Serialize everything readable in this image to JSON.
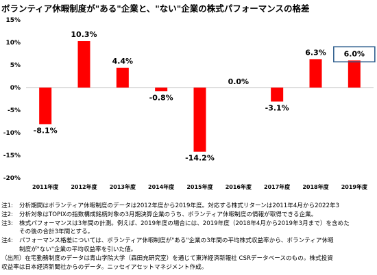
{
  "title": "ボランティア休暇制度が\"ある\"企業と、\"ない\"企業の株式パフォーマンスの格差",
  "chart_data": {
    "type": "bar",
    "categories": [
      "2011年度",
      "2012年度",
      "2013年度",
      "2014年度",
      "2015年度",
      "2016年度",
      "2017年度",
      "2018年度",
      "2019年度"
    ],
    "values": [
      -8.1,
      10.3,
      4.4,
      -0.8,
      -14.2,
      0.0,
      -3.1,
      6.3,
      6.0
    ],
    "labels": [
      "-8.1%",
      "10.3%",
      "4.4%",
      "-0.8%",
      "-14.2%",
      "0.0%",
      "-3.1%",
      "6.3%",
      "6.0%"
    ],
    "yticks": [
      "15%",
      "10%",
      "5%",
      "0%",
      "-5%",
      "-10%",
      "-15%",
      "-20%"
    ],
    "ylim": [
      -20,
      15
    ],
    "color": "#ff0000",
    "highlight_index": 8,
    "highlight_color": "#2f5f8f",
    "grid": false,
    "legend": "none"
  },
  "notes": [
    {
      "id": "注1:",
      "text": "分析期間はボランティア休暇制度のデータは2012年度から2019年度。対応する株式リターンは2011年4月から2022年3"
    },
    {
      "id": "注2:",
      "text": "分析対象はTOPIXの指数構成銘柄対象の3月期決算企業のうち、ボランティア休暇制度の情報が取得できる企業。"
    },
    {
      "id": "注3:",
      "text": "株式パフォーマンスは3年間の計測。例えば、2019年度の場合には、2019年度（2018年4月から2019年3月まで）を含めた"
    },
    {
      "id": "",
      "text": "その後の合計3年間とする。"
    },
    {
      "id": "注4:",
      "text": "パフォーマンス格差については、ボランティア休暇制度が\"ある\"企業の3年間の平均株式収益率から、ボランティア休暇"
    },
    {
      "id": "",
      "text": "制度が\"ない\"企業の平均収益率を引いた値。"
    },
    {
      "id": "",
      "text": "（出所）在宅勤務制度のデータは青山学院大学（森田充研究室）を通じて東洋経済新報社 CSRデータベースのもの。株式投資"
    },
    {
      "id": "",
      "text": "収益率は日本経済新聞社からのデータ。ニッセイアセットマネジメント作成。"
    }
  ]
}
